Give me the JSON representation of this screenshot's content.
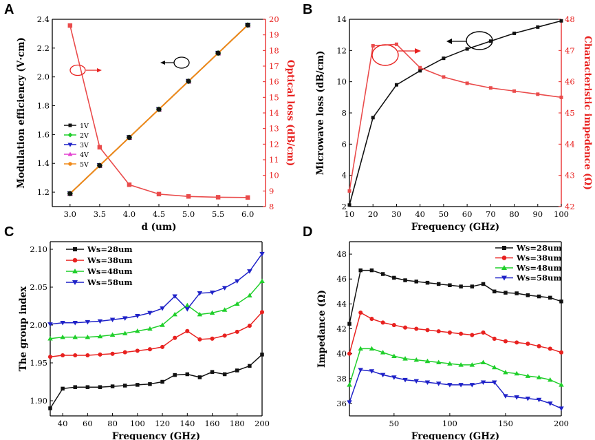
{
  "colors": {
    "black": "#111111",
    "red": "#e8211f",
    "redLine": "#ea4b4b",
    "green": "#1fcf2a",
    "blue": "#1f22c8",
    "magenta": "#e43fd1",
    "orange": "#f08a19",
    "teal": "#1b9a8e",
    "axisRed": "#e8211f"
  },
  "panels": {
    "A": "A",
    "B": "B",
    "C": "C",
    "D": "D"
  },
  "chart_data": [
    {
      "id": "A",
      "type": "line",
      "xlabel": "d (um)",
      "ylabel": "Modulation efficiency (V·cm)",
      "y2label": "Optical loss (dB/cm)",
      "xlim": [
        2.7,
        6.3
      ],
      "ylim": [
        1.1,
        2.4
      ],
      "y2lim": [
        8,
        20
      ],
      "xticks": [
        "3.0",
        "3.5",
        "4.0",
        "4.5",
        "5.0",
        "5.5",
        "6.0"
      ],
      "yticks": [
        "1.2",
        "1.4",
        "1.6",
        "1.8",
        "2.0",
        "2.2",
        "2.4"
      ],
      "y2ticks": [
        "8",
        "9",
        "10",
        "11",
        "12",
        "13",
        "14",
        "15",
        "16",
        "17",
        "18",
        "19",
        "20"
      ],
      "x": [
        3.0,
        3.5,
        4.0,
        4.5,
        5.0,
        5.5,
        6.0
      ],
      "series": [
        {
          "name": "1V",
          "color": "black",
          "marker": "square",
          "values": [
            1.19,
            1.385,
            1.58,
            1.775,
            1.97,
            2.165,
            2.36
          ]
        },
        {
          "name": "2V",
          "color": "green",
          "marker": "diamond",
          "values": [
            1.19,
            1.385,
            1.58,
            1.775,
            1.97,
            2.165,
            2.36
          ]
        },
        {
          "name": "3V",
          "color": "blue",
          "marker": "triangle-down",
          "values": [
            1.19,
            1.385,
            1.58,
            1.775,
            1.97,
            2.165,
            2.36
          ]
        },
        {
          "name": "4V",
          "color": "magenta",
          "marker": "triangle-up",
          "values": [
            1.19,
            1.385,
            1.58,
            1.775,
            1.97,
            2.165,
            2.36
          ]
        },
        {
          "name": "5V",
          "color": "orange",
          "marker": "circle",
          "values": [
            1.19,
            1.385,
            1.58,
            1.775,
            1.97,
            2.165,
            2.36
          ]
        }
      ],
      "series_right": [
        {
          "name": "Optical loss",
          "color": "red",
          "marker": "square",
          "values": [
            19.6,
            11.8,
            9.4,
            8.8,
            8.65,
            8.6,
            8.58
          ]
        }
      ],
      "legend": "middle-left"
    },
    {
      "id": "B",
      "type": "line",
      "xlabel": "Frequency (GHz)",
      "ylabel": "Microwave loss (dB/cm)",
      "y2label": "Characteristic impedence (Ω)",
      "xlim": [
        10,
        100
      ],
      "ylim": [
        2,
        14
      ],
      "y2lim": [
        42,
        48
      ],
      "xticks": [
        "10",
        "20",
        "30",
        "40",
        "50",
        "60",
        "70",
        "80",
        "90",
        "100"
      ],
      "yticks": [
        "2",
        "4",
        "6",
        "8",
        "10",
        "12",
        "14"
      ],
      "y2ticks": [
        "42",
        "43",
        "44",
        "45",
        "46",
        "47",
        "48"
      ],
      "x": [
        10,
        20,
        30,
        40,
        50,
        60,
        70,
        80,
        90,
        100
      ],
      "series": [
        {
          "name": "Microwave loss",
          "color": "black",
          "marker": "square",
          "values": [
            2.1,
            7.7,
            9.8,
            10.7,
            11.5,
            12.1,
            12.6,
            13.1,
            13.5,
            13.9
          ]
        }
      ],
      "series_right": [
        {
          "name": "Characteristic impedence",
          "color": "red",
          "marker": "square",
          "values": [
            42.5,
            47.15,
            47.2,
            46.45,
            46.15,
            45.95,
            45.8,
            45.7,
            45.6,
            45.5
          ]
        }
      ]
    },
    {
      "id": "C",
      "type": "line",
      "xlabel": "Frequency (GHz)",
      "ylabel": "The group index",
      "xlim": [
        30,
        200
      ],
      "ylim": [
        1.88,
        2.11
      ],
      "xticks": [
        "40",
        "60",
        "80",
        "100",
        "120",
        "140",
        "160",
        "180",
        "200"
      ],
      "yticks": [
        "1.90",
        "1.95",
        "2.00",
        "2.05",
        "2.10"
      ],
      "x": [
        30,
        40,
        50,
        60,
        70,
        80,
        90,
        100,
        110,
        120,
        130,
        140,
        150,
        160,
        170,
        180,
        190,
        200
      ],
      "series": [
        {
          "name": "Ws=28um",
          "color": "black",
          "marker": "square",
          "values": [
            1.89,
            1.916,
            1.918,
            1.918,
            1.918,
            1.919,
            1.92,
            1.921,
            1.922,
            1.925,
            1.934,
            1.935,
            1.931,
            1.938,
            1.935,
            1.94,
            1.946,
            1.961
          ]
        },
        {
          "name": "Ws=38um",
          "color": "red",
          "marker": "circle",
          "values": [
            1.958,
            1.96,
            1.96,
            1.96,
            1.961,
            1.962,
            1.964,
            1.966,
            1.968,
            1.971,
            1.983,
            1.992,
            1.981,
            1.982,
            1.986,
            1.991,
            1.999,
            2.017
          ]
        },
        {
          "name": "Ws=48um",
          "color": "green",
          "marker": "triangle-up",
          "values": [
            1.982,
            1.984,
            1.984,
            1.984,
            1.985,
            1.987,
            1.989,
            1.992,
            1.995,
            2.0,
            2.014,
            2.026,
            2.014,
            2.016,
            2.02,
            2.028,
            2.039,
            2.058
          ]
        },
        {
          "name": "Ws=58um",
          "color": "blue",
          "marker": "triangle-down",
          "values": [
            2.001,
            2.003,
            2.003,
            2.004,
            2.005,
            2.007,
            2.009,
            2.012,
            2.016,
            2.022,
            2.038,
            2.021,
            2.042,
            2.043,
            2.049,
            2.058,
            2.071,
            2.094
          ]
        }
      ],
      "legend": "top-left"
    },
    {
      "id": "D",
      "type": "line",
      "xlabel": "Frequency (GHz)",
      "ylabel": "Impedance (Ω)",
      "xlim": [
        10,
        200
      ],
      "ylim": [
        35,
        49
      ],
      "xticks": [
        "50",
        "100",
        "150",
        "200"
      ],
      "yticks": [
        "36",
        "38",
        "40",
        "42",
        "44",
        "46",
        "48"
      ],
      "x": [
        10,
        20,
        30,
        40,
        50,
        60,
        70,
        80,
        90,
        100,
        110,
        120,
        130,
        140,
        150,
        160,
        170,
        180,
        190,
        200
      ],
      "series": [
        {
          "name": "Ws=28um",
          "color": "black",
          "marker": "square",
          "values": [
            42.4,
            46.7,
            46.7,
            46.4,
            46.1,
            45.9,
            45.8,
            45.7,
            45.6,
            45.5,
            45.4,
            45.4,
            45.6,
            45.0,
            44.9,
            44.85,
            44.7,
            44.6,
            44.5,
            44.2
          ]
        },
        {
          "name": "Ws=38um",
          "color": "red",
          "marker": "circle",
          "values": [
            40.0,
            43.3,
            42.8,
            42.5,
            42.3,
            42.1,
            42.0,
            41.9,
            41.8,
            41.7,
            41.6,
            41.5,
            41.7,
            41.2,
            41.0,
            40.9,
            40.8,
            40.6,
            40.4,
            40.1
          ]
        },
        {
          "name": "Ws=48um",
          "color": "green",
          "marker": "triangle-up",
          "values": [
            37.5,
            40.4,
            40.4,
            40.1,
            39.8,
            39.6,
            39.5,
            39.4,
            39.3,
            39.2,
            39.1,
            39.1,
            39.3,
            38.9,
            38.5,
            38.4,
            38.2,
            38.1,
            37.9,
            37.5
          ]
        },
        {
          "name": "Ws=58um",
          "color": "blue",
          "marker": "triangle-down",
          "values": [
            36.1,
            38.7,
            38.6,
            38.3,
            38.1,
            37.9,
            37.8,
            37.7,
            37.6,
            37.5,
            37.5,
            37.5,
            37.7,
            37.7,
            36.6,
            36.5,
            36.4,
            36.3,
            36.0,
            35.6
          ]
        }
      ],
      "legend": "top-right"
    }
  ]
}
